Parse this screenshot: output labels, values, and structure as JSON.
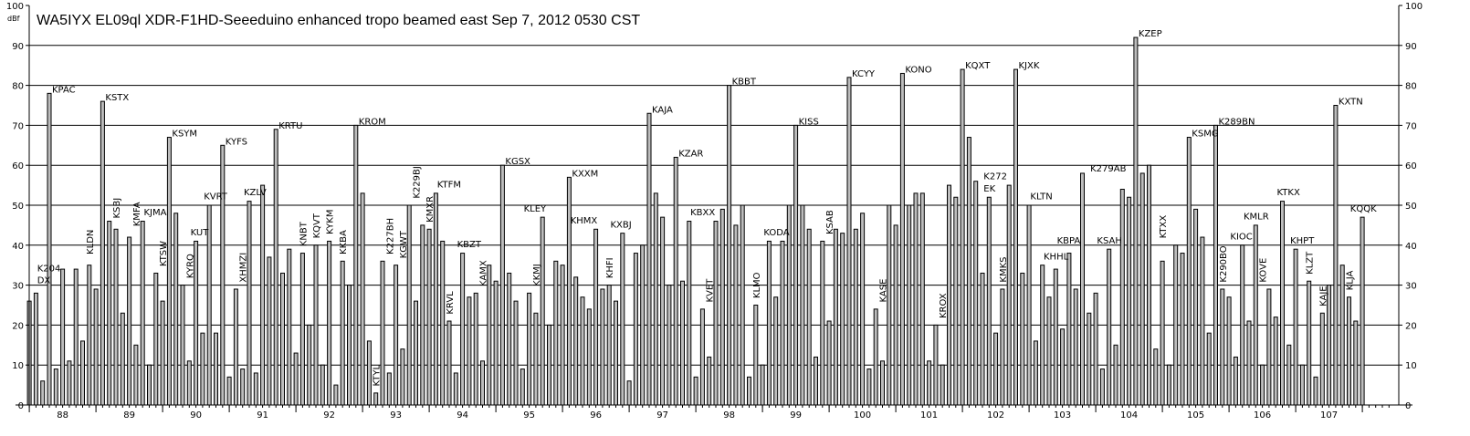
{
  "chart_data": {
    "type": "bar",
    "title": "WA5IYX  EL09ql   XDR-F1HD-Seeeduino    enhanced tropo  beamed east   Sep 7, 2012  0530 CST",
    "ylabel": "dBf",
    "xlabel": "",
    "xlim": [
      87.5,
      107.9
    ],
    "ylim": [
      0,
      100
    ],
    "grid": true,
    "y_ticks": [
      0,
      10,
      20,
      30,
      40,
      50,
      60,
      70,
      80,
      90,
      100
    ],
    "x_ticks": [
      "88",
      "89",
      "90",
      "91",
      "92",
      "93",
      "94",
      "95",
      "96",
      "97",
      "98",
      "99",
      "100",
      "101",
      "102",
      "103",
      "104",
      "105",
      "106",
      "107"
    ],
    "bar_color": "#bdbdbd",
    "points": [
      {
        "x": 87.5,
        "v": 26
      },
      {
        "x": 87.6,
        "v": 28
      },
      {
        "x": 87.7,
        "v": 6
      },
      {
        "x": 87.8,
        "v": 78,
        "label": "KPAC"
      },
      {
        "x": 87.9,
        "v": 9
      },
      {
        "x": 88.0,
        "v": 34
      },
      {
        "x": 88.1,
        "v": 11
      },
      {
        "x": 88.2,
        "v": 34
      },
      {
        "x": 88.3,
        "v": 16
      },
      {
        "x": 88.4,
        "v": 35
      },
      {
        "x": 88.5,
        "v": 29
      },
      {
        "x": 88.6,
        "v": 76,
        "label": "KSTX"
      },
      {
        "x": 88.7,
        "v": 46
      },
      {
        "x": 88.8,
        "v": 44
      },
      {
        "x": 88.9,
        "v": 23
      },
      {
        "x": 89.0,
        "v": 42
      },
      {
        "x": 89.1,
        "v": 15
      },
      {
        "x": 89.2,
        "v": 46
      },
      {
        "x": 89.3,
        "v": 10
      },
      {
        "x": 89.4,
        "v": 33
      },
      {
        "x": 89.5,
        "v": 26
      },
      {
        "x": 89.6,
        "v": 67,
        "label": "KSYM"
      },
      {
        "x": 89.7,
        "v": 48
      },
      {
        "x": 89.8,
        "v": 30
      },
      {
        "x": 89.9,
        "v": 11
      },
      {
        "x": 90.0,
        "v": 41
      },
      {
        "x": 90.1,
        "v": 18
      },
      {
        "x": 90.2,
        "v": 50
      },
      {
        "x": 90.3,
        "v": 18
      },
      {
        "x": 90.4,
        "v": 65,
        "label": "KYFS"
      },
      {
        "x": 90.5,
        "v": 7
      },
      {
        "x": 90.6,
        "v": 29
      },
      {
        "x": 90.7,
        "v": 9
      },
      {
        "x": 90.8,
        "v": 51
      },
      {
        "x": 90.9,
        "v": 8
      },
      {
        "x": 91.0,
        "v": 55
      },
      {
        "x": 91.1,
        "v": 37
      },
      {
        "x": 91.2,
        "v": 69,
        "label": "KRTU"
      },
      {
        "x": 91.3,
        "v": 33
      },
      {
        "x": 91.4,
        "v": 39
      },
      {
        "x": 91.5,
        "v": 13
      },
      {
        "x": 91.6,
        "v": 38
      },
      {
        "x": 91.7,
        "v": 20
      },
      {
        "x": 91.8,
        "v": 40
      },
      {
        "x": 91.9,
        "v": 10
      },
      {
        "x": 92.0,
        "v": 41
      },
      {
        "x": 92.1,
        "v": 5
      },
      {
        "x": 92.2,
        "v": 36
      },
      {
        "x": 92.3,
        "v": 30
      },
      {
        "x": 92.4,
        "v": 70,
        "label": "KROM"
      },
      {
        "x": 92.5,
        "v": 53
      },
      {
        "x": 92.6,
        "v": 16
      },
      {
        "x": 92.7,
        "v": 3
      },
      {
        "x": 92.8,
        "v": 36
      },
      {
        "x": 92.9,
        "v": 8
      },
      {
        "x": 93.0,
        "v": 35
      },
      {
        "x": 93.1,
        "v": 14
      },
      {
        "x": 93.2,
        "v": 50
      },
      {
        "x": 93.3,
        "v": 26
      },
      {
        "x": 93.4,
        "v": 45
      },
      {
        "x": 93.5,
        "v": 44
      },
      {
        "x": 93.6,
        "v": 53
      },
      {
        "x": 93.7,
        "v": 41
      },
      {
        "x": 93.8,
        "v": 21
      },
      {
        "x": 93.9,
        "v": 8
      },
      {
        "x": 94.0,
        "v": 38
      },
      {
        "x": 94.1,
        "v": 27
      },
      {
        "x": 94.2,
        "v": 28
      },
      {
        "x": 94.3,
        "v": 11
      },
      {
        "x": 94.4,
        "v": 35
      },
      {
        "x": 94.5,
        "v": 31
      },
      {
        "x": 94.6,
        "v": 60,
        "label": "KGSX"
      },
      {
        "x": 94.7,
        "v": 33
      },
      {
        "x": 94.8,
        "v": 26
      },
      {
        "x": 94.9,
        "v": 9
      },
      {
        "x": 95.0,
        "v": 28
      },
      {
        "x": 95.1,
        "v": 23
      },
      {
        "x": 95.2,
        "v": 47
      },
      {
        "x": 95.3,
        "v": 20
      },
      {
        "x": 95.4,
        "v": 36
      },
      {
        "x": 95.5,
        "v": 35
      },
      {
        "x": 95.6,
        "v": 57,
        "label": "KXXM"
      },
      {
        "x": 95.7,
        "v": 32
      },
      {
        "x": 95.8,
        "v": 27
      },
      {
        "x": 95.9,
        "v": 24
      },
      {
        "x": 96.0,
        "v": 44
      },
      {
        "x": 96.1,
        "v": 29
      },
      {
        "x": 96.2,
        "v": 30
      },
      {
        "x": 96.3,
        "v": 26
      },
      {
        "x": 96.4,
        "v": 43
      },
      {
        "x": 96.5,
        "v": 6
      },
      {
        "x": 96.6,
        "v": 38
      },
      {
        "x": 96.7,
        "v": 40
      },
      {
        "x": 96.8,
        "v": 73,
        "label": "KAJA"
      },
      {
        "x": 96.9,
        "v": 53
      },
      {
        "x": 97.0,
        "v": 47
      },
      {
        "x": 97.1,
        "v": 30
      },
      {
        "x": 97.2,
        "v": 62,
        "label": "KZAR"
      },
      {
        "x": 97.3,
        "v": 31
      },
      {
        "x": 97.4,
        "v": 46
      },
      {
        "x": 97.5,
        "v": 7
      },
      {
        "x": 97.6,
        "v": 24
      },
      {
        "x": 97.7,
        "v": 12
      },
      {
        "x": 97.8,
        "v": 46
      },
      {
        "x": 97.9,
        "v": 49
      },
      {
        "x": 98.0,
        "v": 80,
        "label": "KBBT"
      },
      {
        "x": 98.1,
        "v": 45
      },
      {
        "x": 98.2,
        "v": 50
      },
      {
        "x": 98.3,
        "v": 7
      },
      {
        "x": 98.4,
        "v": 25
      },
      {
        "x": 98.5,
        "v": 10
      },
      {
        "x": 98.6,
        "v": 41
      },
      {
        "x": 98.7,
        "v": 27
      },
      {
        "x": 98.8,
        "v": 41
      },
      {
        "x": 98.9,
        "v": 50
      },
      {
        "x": 99.0,
        "v": 70,
        "label": "KISS"
      },
      {
        "x": 99.1,
        "v": 50
      },
      {
        "x": 99.2,
        "v": 44
      },
      {
        "x": 99.3,
        "v": 12
      },
      {
        "x": 99.4,
        "v": 41
      },
      {
        "x": 99.5,
        "v": 21
      },
      {
        "x": 99.6,
        "v": 44
      },
      {
        "x": 99.7,
        "v": 43
      },
      {
        "x": 99.8,
        "v": 82,
        "label": "KCYY"
      },
      {
        "x": 99.9,
        "v": 44
      },
      {
        "x": 100.0,
        "v": 48
      },
      {
        "x": 100.1,
        "v": 9
      },
      {
        "x": 100.2,
        "v": 24
      },
      {
        "x": 100.3,
        "v": 11
      },
      {
        "x": 100.4,
        "v": 50
      },
      {
        "x": 100.5,
        "v": 45
      },
      {
        "x": 100.6,
        "v": 83,
        "label": "KONO"
      },
      {
        "x": 100.7,
        "v": 50
      },
      {
        "x": 100.8,
        "v": 53
      },
      {
        "x": 100.9,
        "v": 53
      },
      {
        "x": 101.0,
        "v": 11
      },
      {
        "x": 101.1,
        "v": 20
      },
      {
        "x": 101.2,
        "v": 10
      },
      {
        "x": 101.3,
        "v": 55
      },
      {
        "x": 101.4,
        "v": 52
      },
      {
        "x": 101.5,
        "v": 84,
        "label": "KQXT"
      },
      {
        "x": 101.6,
        "v": 67
      },
      {
        "x": 101.7,
        "v": 56
      },
      {
        "x": 101.8,
        "v": 33
      },
      {
        "x": 101.9,
        "v": 52
      },
      {
        "x": 102.0,
        "v": 18
      },
      {
        "x": 102.1,
        "v": 29
      },
      {
        "x": 102.2,
        "v": 55
      },
      {
        "x": 102.3,
        "v": 84,
        "label": "KJXK"
      },
      {
        "x": 102.4,
        "v": 33
      },
      {
        "x": 102.5,
        "v": 50
      },
      {
        "x": 102.6,
        "v": 16
      },
      {
        "x": 102.7,
        "v": 35
      },
      {
        "x": 102.8,
        "v": 27
      },
      {
        "x": 102.9,
        "v": 34
      },
      {
        "x": 103.0,
        "v": 19
      },
      {
        "x": 103.1,
        "v": 38
      },
      {
        "x": 103.2,
        "v": 29
      },
      {
        "x": 103.3,
        "v": 58
      },
      {
        "x": 103.4,
        "v": 23
      },
      {
        "x": 103.5,
        "v": 28
      },
      {
        "x": 103.6,
        "v": 9
      },
      {
        "x": 103.7,
        "v": 39
      },
      {
        "x": 103.8,
        "v": 15
      },
      {
        "x": 103.9,
        "v": 54
      },
      {
        "x": 104.0,
        "v": 52
      },
      {
        "x": 104.1,
        "v": 92,
        "label": "KZEP"
      },
      {
        "x": 104.2,
        "v": 58
      },
      {
        "x": 104.3,
        "v": 60
      },
      {
        "x": 104.4,
        "v": 14
      },
      {
        "x": 104.5,
        "v": 36
      },
      {
        "x": 104.6,
        "v": 10
      },
      {
        "x": 104.7,
        "v": 40
      },
      {
        "x": 104.8,
        "v": 38
      },
      {
        "x": 104.9,
        "v": 67,
        "label": "KSMG"
      },
      {
        "x": 105.0,
        "v": 49
      },
      {
        "x": 105.1,
        "v": 42
      },
      {
        "x": 105.2,
        "v": 18
      },
      {
        "x": 105.3,
        "v": 70,
        "label": "K289BN"
      },
      {
        "x": 105.4,
        "v": 29
      },
      {
        "x": 105.5,
        "v": 27
      },
      {
        "x": 105.6,
        "v": 12
      },
      {
        "x": 105.7,
        "v": 40
      },
      {
        "x": 105.8,
        "v": 21
      },
      {
        "x": 105.9,
        "v": 45
      },
      {
        "x": 106.0,
        "v": 10
      },
      {
        "x": 106.1,
        "v": 29
      },
      {
        "x": 106.2,
        "v": 22
      },
      {
        "x": 106.3,
        "v": 51
      },
      {
        "x": 106.4,
        "v": 15
      },
      {
        "x": 106.5,
        "v": 39
      },
      {
        "x": 106.6,
        "v": 10
      },
      {
        "x": 106.7,
        "v": 31
      },
      {
        "x": 106.8,
        "v": 7
      },
      {
        "x": 106.9,
        "v": 23
      },
      {
        "x": 107.0,
        "v": 30
      },
      {
        "x": 107.1,
        "v": 75,
        "label": "KXTN"
      },
      {
        "x": 107.2,
        "v": 35
      },
      {
        "x": 107.3,
        "v": 27
      },
      {
        "x": 107.4,
        "v": 21
      },
      {
        "x": 107.5,
        "v": 47
      }
    ],
    "labels": [
      {
        "x": 87.7,
        "v": 30,
        "text": "DX"
      },
      {
        "x": 87.7,
        "v": 33,
        "text": "K204"
      },
      {
        "x": 88.4,
        "v": 37,
        "text": "KLDN",
        "rot": true
      },
      {
        "x": 88.8,
        "v": 46,
        "text": "KSBJ",
        "rot": true
      },
      {
        "x": 89.1,
        "v": 44,
        "text": "KMFA",
        "rot": true
      },
      {
        "x": 89.3,
        "v": 47,
        "text": "KJMA"
      },
      {
        "x": 89.5,
        "v": 34,
        "text": "KTSW",
        "rot": true
      },
      {
        "x": 89.9,
        "v": 31,
        "text": "KYRQ",
        "rot": true
      },
      {
        "x": 90.0,
        "v": 42,
        "text": "KUT"
      },
      {
        "x": 90.2,
        "v": 51,
        "text": "KVRT"
      },
      {
        "x": 90.7,
        "v": 30,
        "text": "XHMZI",
        "rot": true
      },
      {
        "x": 90.8,
        "v": 52,
        "text": "KZLV"
      },
      {
        "x": 91.6,
        "v": 39,
        "text": "KNBT",
        "rot": true
      },
      {
        "x": 91.8,
        "v": 41,
        "text": "KQVT",
        "rot": true
      },
      {
        "x": 92.0,
        "v": 42,
        "text": "KYKM",
        "rot": true
      },
      {
        "x": 92.2,
        "v": 37,
        "text": "KKBA",
        "rot": true
      },
      {
        "x": 92.7,
        "v": 4,
        "text": "KTYL",
        "rot": true
      },
      {
        "x": 92.9,
        "v": 37,
        "text": "K227BH",
        "rot": true
      },
      {
        "x": 93.1,
        "v": 36,
        "text": "KGWT",
        "rot": true
      },
      {
        "x": 93.3,
        "v": 51,
        "text": "K229BJ",
        "rot": true
      },
      {
        "x": 93.5,
        "v": 45,
        "text": "KMXR",
        "rot": true
      },
      {
        "x": 93.7,
        "v": 54,
        "text": "KTFM"
      },
      {
        "x": 93.8,
        "v": 22,
        "text": "KRVL",
        "rot": true
      },
      {
        "x": 94.0,
        "v": 39,
        "text": "KBZT"
      },
      {
        "x": 94.3,
        "v": 29,
        "text": "KAMX",
        "rot": true
      },
      {
        "x": 95.0,
        "v": 48,
        "text": "KLEY"
      },
      {
        "x": 95.1,
        "v": 29,
        "text": "KKMJ",
        "rot": true
      },
      {
        "x": 95.7,
        "v": 45,
        "text": "KHMX"
      },
      {
        "x": 96.2,
        "v": 31,
        "text": "KHFI",
        "rot": true
      },
      {
        "x": 96.3,
        "v": 44,
        "text": "KXBJ"
      },
      {
        "x": 97.5,
        "v": 47,
        "text": "KBXX"
      },
      {
        "x": 97.7,
        "v": 25,
        "text": "KVET",
        "rot": true
      },
      {
        "x": 98.4,
        "v": 26,
        "text": "KLMO",
        "rot": true
      },
      {
        "x": 98.6,
        "v": 42,
        "text": "KODA"
      },
      {
        "x": 99.5,
        "v": 42,
        "text": "KSAB",
        "rot": true
      },
      {
        "x": 100.3,
        "v": 25,
        "text": "KASE",
        "rot": true
      },
      {
        "x": 101.2,
        "v": 21,
        "text": "KROX",
        "rot": true
      },
      {
        "x": 101.9,
        "v": 53,
        "text": "EK"
      },
      {
        "x": 101.9,
        "v": 56,
        "text": "K272"
      },
      {
        "x": 102.1,
        "v": 30,
        "text": "KMKS",
        "rot": true
      },
      {
        "x": 102.6,
        "v": 51,
        "text": "KLTN"
      },
      {
        "x": 102.8,
        "v": 36,
        "text": "KHHL"
      },
      {
        "x": 103.0,
        "v": 40,
        "text": "KBPA"
      },
      {
        "x": 103.5,
        "v": 58,
        "text": "K279AB"
      },
      {
        "x": 103.6,
        "v": 40,
        "text": "KSAH"
      },
      {
        "x": 104.5,
        "v": 41,
        "text": "KTXX",
        "rot": true
      },
      {
        "x": 105.4,
        "v": 30,
        "text": "K290BO",
        "rot": true
      },
      {
        "x": 105.6,
        "v": 41,
        "text": "KIOC"
      },
      {
        "x": 105.8,
        "v": 46,
        "text": "KMLR"
      },
      {
        "x": 106.0,
        "v": 30,
        "text": "KOVE",
        "rot": true
      },
      {
        "x": 106.3,
        "v": 52,
        "text": "KTKX"
      },
      {
        "x": 106.5,
        "v": 40,
        "text": "KHPT"
      },
      {
        "x": 106.7,
        "v": 32,
        "text": "KLZT",
        "rot": true
      },
      {
        "x": 106.9,
        "v": 24,
        "text": "KAJE",
        "rot": true
      },
      {
        "x": 107.3,
        "v": 28,
        "text": "KLJA",
        "rot": true
      },
      {
        "x": 107.4,
        "v": 48,
        "text": "KQQK"
      }
    ]
  }
}
